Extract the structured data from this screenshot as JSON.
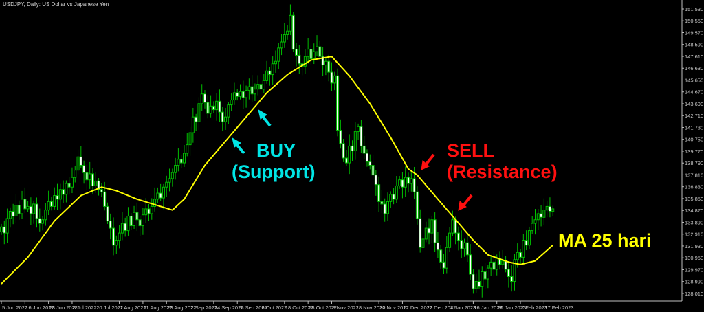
{
  "title": "USDJPY, Daily:  US Dollar vs Japanese Yen",
  "colors": {
    "background": "#000000",
    "candle_outline": "#00c000",
    "bull_fill": "#000000",
    "bear_fill": "#ffffff",
    "ma": "#ffff00",
    "buy": "#00e5e5",
    "sell": "#ff1010",
    "axis": "#c0c0c0"
  },
  "annotations": {
    "buy": [
      "BUY",
      "(Support)"
    ],
    "sell": [
      "SELL",
      "(Resistance)"
    ],
    "ma_label": "MA 25 hari"
  },
  "chart_data": {
    "type": "candlestick",
    "symbol": "USDJPY",
    "timeframe": "Daily",
    "ylim": [
      127.5,
      152.2
    ],
    "yticks": [
      "151.530",
      "150.550",
      "149.570",
      "148.590",
      "147.610",
      "146.630",
      "145.650",
      "144.670",
      "143.690",
      "142.710",
      "141.730",
      "140.750",
      "139.770",
      "138.790",
      "137.810",
      "136.830",
      "135.850",
      "134.870",
      "133.890",
      "132.910",
      "131.930",
      "130.950",
      "129.970",
      "128.990",
      "128.010"
    ],
    "xticks": [
      {
        "bar": 0,
        "label": "5 Jun 2022"
      },
      {
        "bar": 8,
        "label": "16 Jun 2022"
      },
      {
        "bar": 16,
        "label": "28 Jun 2022"
      },
      {
        "bar": 24,
        "label": "8 Jul 2022"
      },
      {
        "bar": 32,
        "label": "20 Jul 2022"
      },
      {
        "bar": 40,
        "label": "1 Aug 2022"
      },
      {
        "bar": 48,
        "label": "11 Aug 2022"
      },
      {
        "bar": 56,
        "label": "23 Aug 2022"
      },
      {
        "bar": 64,
        "label": "2 Sep 2022"
      },
      {
        "bar": 72,
        "label": "14 Sep 2022"
      },
      {
        "bar": 80,
        "label": "26 Sep 2022"
      },
      {
        "bar": 88,
        "label": "6 Oct 2022"
      },
      {
        "bar": 96,
        "label": "18 Oct 2022"
      },
      {
        "bar": 104,
        "label": "28 Oct 2022"
      },
      {
        "bar": 112,
        "label": "8 Nov 2022"
      },
      {
        "bar": 120,
        "label": "18 Nov 2022"
      },
      {
        "bar": 128,
        "label": "30 Nov 2022"
      },
      {
        "bar": 136,
        "label": "12 Dec 2022"
      },
      {
        "bar": 144,
        "label": "22 Dec 2022"
      },
      {
        "bar": 152,
        "label": "4 Jan 2023"
      },
      {
        "bar": 160,
        "label": "16 Jan 2023"
      },
      {
        "bar": 168,
        "label": "26 Jan 2023"
      },
      {
        "bar": 176,
        "label": "7 Feb 2023"
      },
      {
        "bar": 184,
        "label": "17 Feb 2023"
      }
    ],
    "closes": [
      133.5,
      133.0,
      134.2,
      134.8,
      134.4,
      135.3,
      134.6,
      135.8,
      135.0,
      135.2,
      134.6,
      135.4,
      134.2,
      133.8,
      134.1,
      134.9,
      135.6,
      135.2,
      136.1,
      135.8,
      136.6,
      136.2,
      137.1,
      136.8,
      137.6,
      138.2,
      139.3,
      138.6,
      138.0,
      137.4,
      137.9,
      136.9,
      137.3,
      136.6,
      136.4,
      135.2,
      134.0,
      133.4,
      132.0,
      132.4,
      133.0,
      133.8,
      133.2,
      134.4,
      133.6,
      134.7,
      134.1,
      133.6,
      134.5,
      135.0,
      134.6,
      135.2,
      135.8,
      136.3,
      135.9,
      136.8,
      137.2,
      137.5,
      138.0,
      138.6,
      139.1,
      138.8,
      139.6,
      140.3,
      141.3,
      142.6,
      142.2,
      143.7,
      144.5,
      143.8,
      142.9,
      143.5,
      143.2,
      143.9,
      143.0,
      142.2,
      142.6,
      143.6,
      144.0,
      144.6,
      144.3,
      144.7,
      144.2,
      144.8,
      145.1,
      144.5,
      144.9,
      145.3,
      144.9,
      145.6,
      146.4,
      146.1,
      147.0,
      147.2,
      148.3,
      148.8,
      149.4,
      149.7,
      151.0,
      148.2,
      147.7,
      147.0,
      146.8,
      147.6,
      148.2,
      147.4,
      148.0,
      148.4,
      147.6,
      146.9,
      147.2,
      146.3,
      145.4,
      146.0,
      141.5,
      140.4,
      139.2,
      138.8,
      140.2,
      139.8,
      141.4,
      141.8,
      140.2,
      139.6,
      138.9,
      138.6,
      137.8,
      137.0,
      135.6,
      135.4,
      134.6,
      135.6,
      136.2,
      135.8,
      136.9,
      137.4,
      136.8,
      137.6,
      137.1,
      137.5,
      136.4,
      134.2,
      131.8,
      132.5,
      133.4,
      133.0,
      134.1,
      132.2,
      131.6,
      130.6,
      130.1,
      131.8,
      133.0,
      134.1,
      133.0,
      132.4,
      131.7,
      132.2,
      131.2,
      129.6,
      128.4,
      129.0,
      128.6,
      129.8,
      129.2,
      130.1,
      130.6,
      130.0,
      130.9,
      130.4,
      130.7,
      130.0,
      129.4,
      129.0,
      130.8,
      131.4,
      131.0,
      132.4,
      132.0,
      133.2,
      133.8,
      134.1,
      134.6,
      134.3,
      134.9,
      135.2,
      134.8,
      135.0
    ],
    "spike_high": {
      "bar": 98,
      "value": 151.9
    },
    "ma": {
      "name": "MA 25 hari",
      "points": [
        [
          0,
          128.8
        ],
        [
          9,
          131.0
        ],
        [
          18,
          134.0
        ],
        [
          27,
          136.1
        ],
        [
          34,
          136.8
        ],
        [
          39,
          136.5
        ],
        [
          46,
          135.8
        ],
        [
          58,
          134.9
        ],
        [
          62,
          135.8
        ],
        [
          69,
          138.6
        ],
        [
          76,
          140.6
        ],
        [
          83,
          142.6
        ],
        [
          90,
          144.6
        ],
        [
          97,
          146.1
        ],
        [
          105,
          147.3
        ],
        [
          112,
          147.6
        ],
        [
          118,
          146.0
        ],
        [
          125,
          143.7
        ],
        [
          132,
          140.9
        ],
        [
          138,
          138.3
        ],
        [
          141,
          137.8
        ],
        [
          148,
          135.8
        ],
        [
          153,
          134.4
        ],
        [
          160,
          132.4
        ],
        [
          165,
          131.2
        ],
        [
          172,
          130.6
        ],
        [
          176,
          130.4
        ],
        [
          181,
          130.7
        ],
        [
          187,
          132.0
        ]
      ]
    }
  }
}
